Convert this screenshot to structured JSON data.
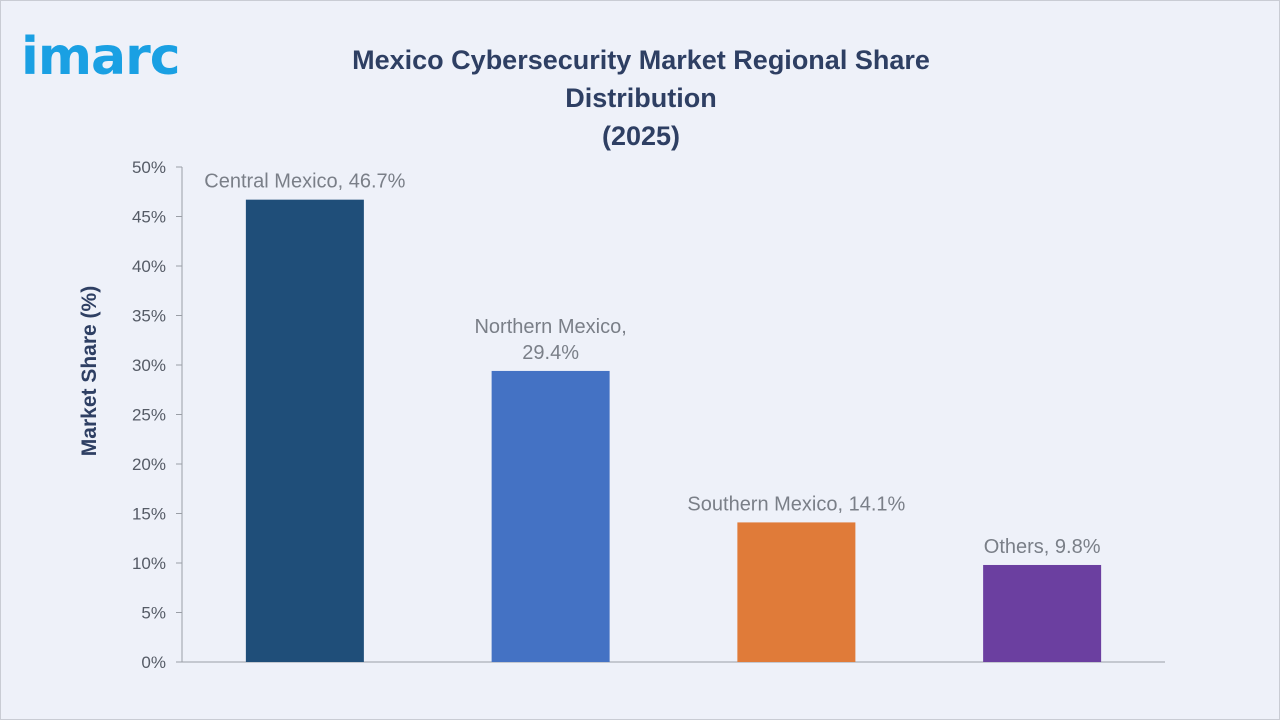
{
  "brand": {
    "logo_text": "imarc",
    "logo_color": "#1aa0e3"
  },
  "chart_data": {
    "type": "bar",
    "title": "Mexico Cybersecurity Market Regional Share Distribution (2025)",
    "title_lines": [
      "Mexico Cybersecurity Market Regional Share Distribution",
      "(2025)"
    ],
    "xlabel": "",
    "ylabel": "Market Share (%)",
    "ylim": [
      0,
      50
    ],
    "y_ticks": [
      0,
      5,
      10,
      15,
      20,
      25,
      30,
      35,
      40,
      45,
      50
    ],
    "y_tick_labels": [
      "0%",
      "5%",
      "10%",
      "15%",
      "20%",
      "25%",
      "30%",
      "35%",
      "40%",
      "45%",
      "50%"
    ],
    "categories": [
      "Central Mexico",
      "Northern Mexico",
      "Southern Mexico",
      "Others"
    ],
    "values": [
      46.7,
      29.4,
      14.1,
      9.8
    ],
    "data_labels": [
      [
        "Central Mexico, 46.7%"
      ],
      [
        "Northern Mexico,",
        "29.4%"
      ],
      [
        "Southern Mexico, 14.1%"
      ],
      [
        "Others, 9.8%"
      ]
    ],
    "colors": [
      "#1f4e79",
      "#4472c4",
      "#e07b39",
      "#6b3fa0"
    ],
    "grid": false,
    "legend": "none"
  }
}
